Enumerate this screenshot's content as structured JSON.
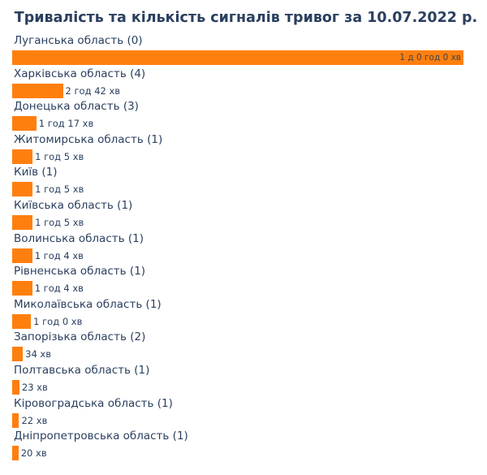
{
  "chart_data": {
    "type": "bar",
    "orientation": "horizontal",
    "title": "Тривалість та кількість сигналів тривог за 10.07.2022 р.",
    "xlabel": "",
    "ylabel": "",
    "grid": false,
    "bar_color": "#ff7f0e",
    "text_color": "#2a3f5f",
    "unit": "minutes",
    "max_minutes": 1440,
    "categories": [
      "Луганська область (0)",
      "Харківська область (4)",
      "Донецька область (3)",
      "Житомирська область (1)",
      "Київ (1)",
      "Київська область (1)",
      "Волинська область (1)",
      "Рівненська область (1)",
      "Миколаївська область (1)",
      "Запорізька область (2)",
      "Полтавська область (1)",
      "Кіровоградська область (1)",
      "Дніпропетровська область (1)"
    ],
    "values": [
      1440,
      162,
      77,
      65,
      65,
      65,
      64,
      64,
      60,
      34,
      23,
      22,
      20
    ],
    "value_labels": [
      "1 д 0 год 0 хв",
      "2 год 42 хв",
      "1 год 17 хв",
      "1 год 5 хв",
      "1 год 5 хв",
      "1 год 5 хв",
      "1 год 4 хв",
      "1 год 4 хв",
      "1 год 0 хв",
      "34 хв",
      "23 хв",
      "22 хв",
      "20 хв"
    ],
    "counts": [
      0,
      4,
      3,
      1,
      1,
      1,
      1,
      1,
      1,
      2,
      1,
      1,
      1
    ]
  }
}
